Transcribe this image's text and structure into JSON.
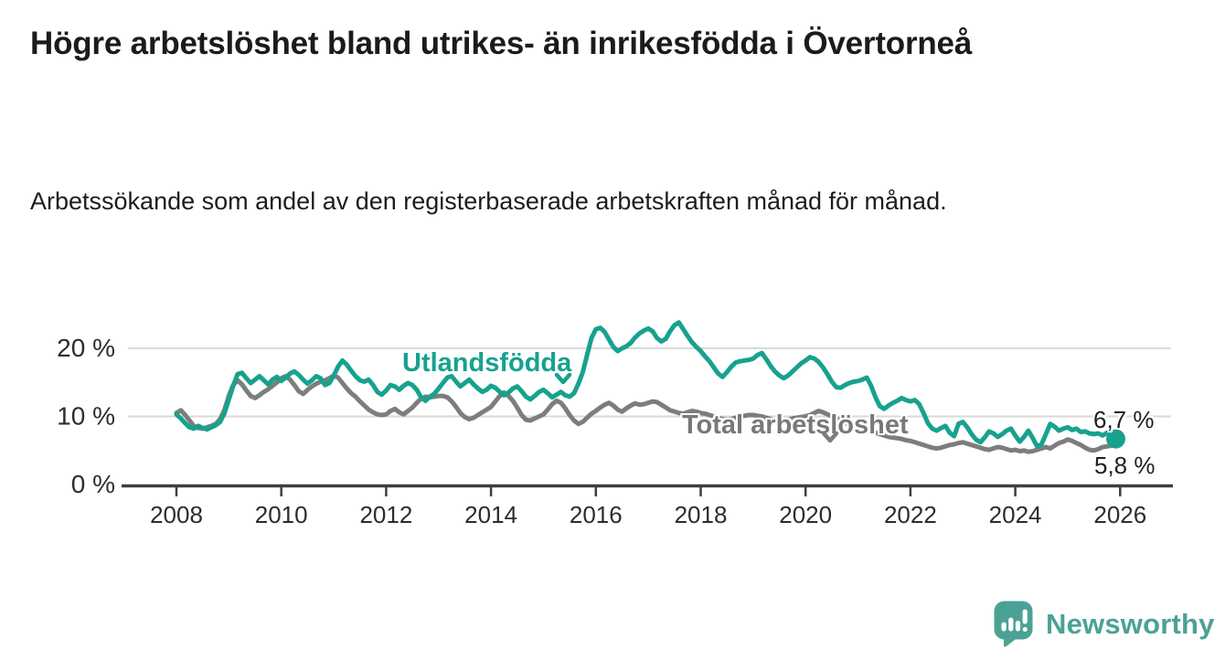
{
  "header": {
    "title": "Högre arbetslöshet bland utrikes- än inrikesfödda i Övertorneå",
    "subtitle": "Arbetssökande som andel av den registerbaserade arbetskraften månad för månad."
  },
  "branding": {
    "name": "Newsworthy",
    "color": "#4ba294"
  },
  "chart_data": {
    "type": "line",
    "title": "Högre arbetslöshet bland utrikes- än inrikesfödda i Övertorneå",
    "subtitle": "Arbetssökande som andel av den registerbaserade arbetskraften månad för månad.",
    "x_unit": "month",
    "x_start": "2008-01",
    "x_end": "2025-12",
    "x_tick_labels": [
      "2008",
      "2010",
      "2012",
      "2014",
      "2016",
      "2018",
      "2020",
      "2022",
      "2024",
      "2026"
    ],
    "y_ticks": [
      {
        "value": 0,
        "label": "0 %"
      },
      {
        "value": 10,
        "label": "10 %"
      },
      {
        "value": 20,
        "label": "20 %"
      }
    ],
    "ylim": [
      0,
      25
    ],
    "grid": "horizontal-only",
    "legend_position": "inline-labels",
    "axis_color": "#3f3f3f",
    "gridline_color": "#d9d9d9",
    "series": [
      {
        "name": "Utlandsfödda",
        "color": "#17a28e",
        "end_label": "6,7 %",
        "end_value": 6.7,
        "marker_on_last_point": true,
        "values": [
          10.3,
          9.7,
          9.0,
          8.4,
          8.2,
          8.6,
          8.3,
          8.1,
          8.4,
          8.7,
          9.2,
          10.5,
          12.5,
          14.5,
          16.2,
          16.4,
          15.6,
          14.9,
          15.4,
          15.9,
          15.3,
          14.7,
          15.4,
          15.8,
          15.2,
          15.7,
          16.3,
          16.6,
          16.1,
          15.4,
          14.8,
          15.3,
          15.9,
          15.6,
          14.6,
          14.9,
          16.0,
          17.3,
          18.2,
          17.6,
          16.7,
          15.9,
          15.3,
          15.1,
          15.4,
          14.6,
          13.6,
          13.2,
          13.8,
          14.6,
          14.4,
          13.9,
          14.5,
          14.9,
          14.6,
          13.9,
          12.8,
          12.3,
          12.9,
          13.3,
          14.1,
          14.9,
          15.7,
          15.9,
          15.1,
          14.4,
          14.9,
          15.4,
          14.7,
          14.1,
          13.6,
          13.9,
          14.5,
          14.2,
          13.6,
          13.1,
          13.5,
          14.1,
          14.4,
          13.7,
          12.9,
          12.5,
          13.0,
          13.6,
          13.9,
          13.4,
          12.8,
          13.2,
          13.6,
          13.1,
          12.9,
          13.4,
          14.8,
          16.5,
          19.0,
          21.5,
          22.8,
          23.0,
          22.4,
          21.3,
          20.2,
          19.6,
          20.0,
          20.3,
          20.8,
          21.6,
          22.2,
          22.6,
          22.9,
          22.5,
          21.5,
          21.0,
          21.4,
          22.5,
          23.4,
          23.8,
          22.8,
          21.8,
          20.9,
          20.2,
          19.6,
          18.8,
          18.1,
          17.2,
          16.3,
          15.8,
          16.5,
          17.3,
          17.9,
          18.1,
          18.2,
          18.3,
          18.5,
          19.0,
          19.3,
          18.4,
          17.4,
          16.6,
          16.0,
          15.6,
          16.0,
          16.6,
          17.2,
          17.8,
          18.2,
          18.7,
          18.5,
          18.0,
          17.2,
          16.2,
          15.1,
          14.3,
          14.2,
          14.6,
          14.9,
          15.1,
          15.2,
          15.4,
          15.7,
          14.5,
          12.8,
          11.5,
          11.1,
          11.6,
          12.0,
          12.3,
          12.7,
          12.4,
          12.2,
          12.4,
          11.8,
          10.5,
          9.0,
          8.2,
          7.9,
          8.3,
          8.6,
          7.6,
          7.1,
          8.9,
          9.2,
          8.4,
          7.4,
          6.6,
          6.2,
          6.9,
          7.8,
          7.5,
          7.0,
          7.4,
          7.9,
          8.2,
          7.2,
          6.3,
          7.0,
          7.9,
          6.8,
          5.6,
          5.9,
          7.4,
          8.9,
          8.5,
          7.9,
          8.2,
          8.4,
          8.0,
          8.2,
          7.7,
          7.8,
          7.5,
          7.4,
          7.5,
          7.2,
          7.6,
          7.4,
          6.7
        ]
      },
      {
        "name": "Total arbetslöshet",
        "color": "#7d7d7d",
        "end_label": "5,8 %",
        "end_value": 5.8,
        "marker_on_last_point": false,
        "values": [
          10.5,
          10.9,
          10.2,
          9.4,
          8.6,
          8.3,
          8.2,
          8.4,
          8.6,
          8.9,
          9.6,
          11.0,
          13.0,
          14.6,
          15.3,
          14.7,
          13.8,
          13.0,
          12.7,
          13.1,
          13.6,
          14.0,
          14.5,
          15.0,
          15.6,
          15.9,
          15.4,
          14.6,
          13.7,
          13.3,
          13.9,
          14.4,
          14.8,
          15.1,
          15.3,
          15.6,
          16.0,
          15.7,
          14.9,
          14.1,
          13.4,
          12.9,
          12.2,
          11.6,
          11.0,
          10.6,
          10.3,
          10.2,
          10.3,
          10.8,
          11.1,
          10.6,
          10.3,
          10.8,
          11.3,
          12.0,
          12.6,
          12.9,
          12.8,
          12.9,
          13.0,
          13.0,
          12.8,
          12.2,
          11.4,
          10.5,
          9.9,
          9.6,
          9.8,
          10.2,
          10.6,
          11.0,
          11.4,
          12.2,
          13.0,
          13.5,
          13.0,
          12.3,
          11.3,
          10.2,
          9.5,
          9.4,
          9.7,
          10.0,
          10.3,
          11.0,
          11.8,
          12.3,
          12.0,
          11.2,
          10.2,
          9.4,
          8.9,
          9.2,
          9.8,
          10.4,
          10.8,
          11.3,
          11.7,
          12.0,
          11.6,
          11.0,
          10.7,
          11.2,
          11.6,
          11.9,
          11.7,
          11.8,
          12.0,
          12.2,
          12.1,
          11.7,
          11.3,
          10.9,
          10.7,
          10.5,
          10.4,
          10.6,
          10.8,
          10.7,
          10.5,
          10.4,
          10.2,
          10.0,
          9.8,
          9.6,
          9.5,
          9.6,
          9.8,
          10.0,
          10.1,
          10.2,
          10.2,
          10.1,
          10.0,
          9.8,
          9.6,
          9.4,
          9.3,
          9.4,
          9.5,
          9.7,
          9.8,
          9.9,
          10.0,
          10.2,
          10.5,
          10.8,
          10.6,
          10.3,
          10.0,
          9.7,
          9.4,
          9.1,
          8.8,
          8.6,
          8.4,
          8.2,
          8.0,
          7.8,
          7.6,
          7.4,
          7.2,
          7.0,
          6.9,
          6.8,
          6.7,
          6.5,
          6.4,
          6.2,
          6.0,
          5.8,
          5.6,
          5.4,
          5.3,
          5.4,
          5.6,
          5.8,
          5.9,
          6.1,
          6.2,
          6.0,
          5.8,
          5.6,
          5.4,
          5.2,
          5.1,
          5.3,
          5.5,
          5.4,
          5.2,
          5.0,
          5.1,
          4.9,
          5.0,
          4.8,
          4.9,
          5.1,
          5.3,
          5.5,
          5.3,
          5.7,
          6.1,
          6.3,
          6.6,
          6.4,
          6.1,
          5.8,
          5.4,
          5.1,
          5.0,
          5.2,
          5.5,
          5.6,
          5.7,
          5.8
        ]
      }
    ]
  }
}
